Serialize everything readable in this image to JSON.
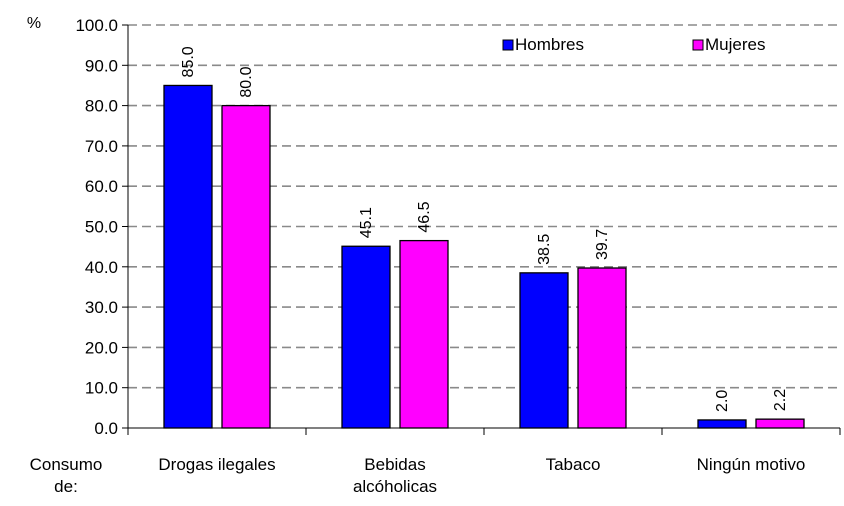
{
  "chart_data": {
    "type": "bar",
    "title": "",
    "ylabel": "%",
    "xlabel": "Consumo de:",
    "xlabel_lines": [
      "Consumo",
      "de:"
    ],
    "ylim": [
      0,
      100
    ],
    "yticks": [
      "0.0",
      "10.0",
      "20.0",
      "30.0",
      "40.0",
      "50.0",
      "60.0",
      "70.0",
      "80.0",
      "90.0",
      "100.0"
    ],
    "grid": true,
    "legend_position": "top-right",
    "categories": [
      "Drogas ilegales",
      "Bebidas alcóholicas",
      "Tabaco",
      "Ningún motivo"
    ],
    "category_lines": [
      [
        "Drogas ilegales"
      ],
      [
        "Bebidas",
        "alcóholicas"
      ],
      [
        "Tabaco"
      ],
      [
        "Ningún motivo"
      ]
    ],
    "series": [
      {
        "name": "Hombres",
        "color": "#0000FF",
        "values": [
          85.0,
          45.1,
          38.5,
          2.0
        ],
        "labels": [
          "85.0",
          "45.1",
          "38.5",
          "2.0"
        ]
      },
      {
        "name": "Mujeres",
        "color": "#FF00FF",
        "values": [
          80.0,
          46.5,
          39.7,
          2.2
        ],
        "labels": [
          "80.0",
          "46.5",
          "39.7",
          "2.2"
        ]
      }
    ]
  }
}
